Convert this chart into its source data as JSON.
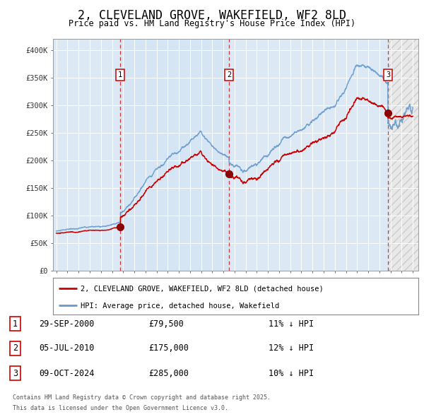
{
  "title": "2, CLEVELAND GROVE, WAKEFIELD, WF2 8LD",
  "subtitle": "Price paid vs. HM Land Registry's House Price Index (HPI)",
  "title_fontsize": 12,
  "subtitle_fontsize": 9,
  "background_color": "#ffffff",
  "plot_bg_color": "#dce9f5",
  "grid_color": "#ffffff",
  "ylim": [
    0,
    420000
  ],
  "yticks": [
    0,
    50000,
    100000,
    150000,
    200000,
    250000,
    300000,
    350000,
    400000
  ],
  "ytick_labels": [
    "£0",
    "£50K",
    "£100K",
    "£150K",
    "£200K",
    "£250K",
    "£300K",
    "£350K",
    "£400K"
  ],
  "sale1_date": 2000.747,
  "sale1_price": 79500,
  "sale1_label": "1",
  "sale1_display": "29-SEP-2000",
  "sale1_pct": "11% ↓ HPI",
  "sale2_date": 2010.505,
  "sale2_price": 175000,
  "sale2_label": "2",
  "sale2_display": "05-JUL-2010",
  "sale2_pct": "12% ↓ HPI",
  "sale3_date": 2024.769,
  "sale3_price": 285000,
  "sale3_label": "3",
  "sale3_display": "09-OCT-2024",
  "sale3_pct": "10% ↓ HPI",
  "hpi_line_color": "#6699cc",
  "price_line_color": "#cc0000",
  "dot_color": "#8b0000",
  "vline_color": "#cc0000",
  "legend_line1": "2, CLEVELAND GROVE, WAKEFIELD, WF2 8LD (detached house)",
  "legend_line2": "HPI: Average price, detached house, Wakefield",
  "footer1": "Contains HM Land Registry data © Crown copyright and database right 2025.",
  "footer2": "This data is licensed under the Open Government Licence v3.0.",
  "start_year": 1995.0,
  "end_year": 2027.0
}
